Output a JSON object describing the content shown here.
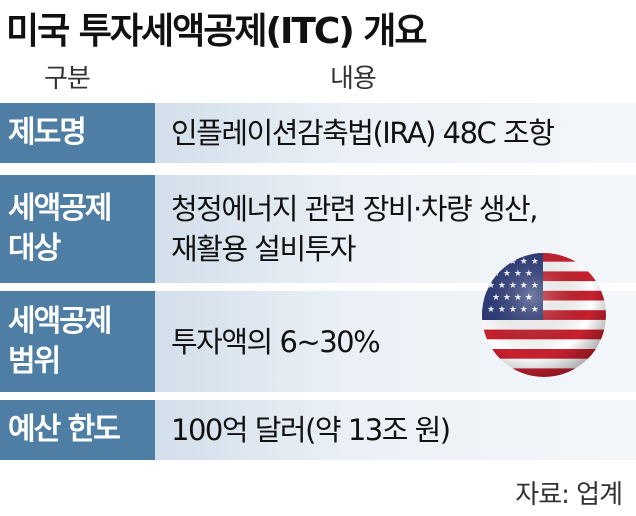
{
  "title": "미국 투자세액공제(ITC) 개요",
  "header": {
    "col1": "구분",
    "col2": "내용"
  },
  "rows": [
    {
      "label": [
        "제도명"
      ],
      "value": [
        "인플레이션감축법(IRA) 48C 조항"
      ]
    },
    {
      "label": [
        "세액공제",
        "대상"
      ],
      "value": [
        "청정에너지 관련 장비·차량 생산,",
        "재활용 설비투자"
      ]
    },
    {
      "label": [
        "세액공제",
        "범위"
      ],
      "value": [
        "투자액의 6~30%"
      ]
    },
    {
      "label": [
        "예산 한도"
      ],
      "value": [
        "100억 달러(약 13조 원)"
      ]
    }
  ],
  "source": "자료: 업계",
  "colors": {
    "label_bg": "#4f7ea5",
    "value_bg": "#eaf0f6"
  },
  "icon": "us-flag-sphere-icon"
}
